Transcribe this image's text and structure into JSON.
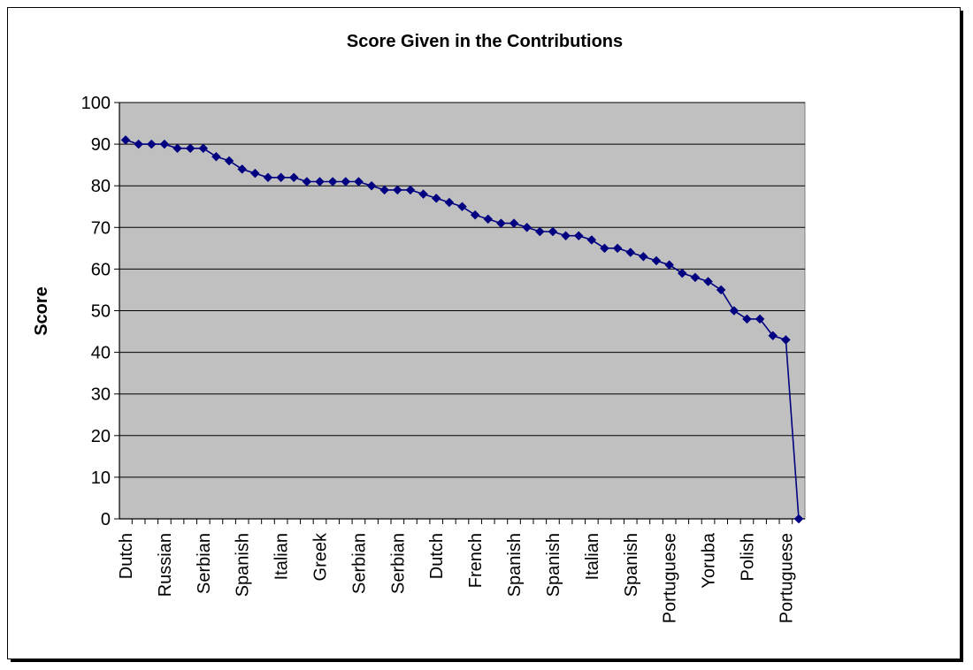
{
  "chart_data": {
    "type": "line",
    "title": "Score Given in the Contributions",
    "xlabel": "",
    "ylabel": "Score",
    "ylim": [
      0,
      100
    ],
    "yticks": [
      0,
      10,
      20,
      30,
      40,
      50,
      60,
      70,
      80,
      90,
      100
    ],
    "grid": true,
    "legend": "none",
    "colors": {
      "plot_bg": "#c0c0c0",
      "line": "#000080",
      "marker": "#000080",
      "grid": "#000000"
    },
    "x_labels": [
      "Dutch",
      "Russian",
      "Serbian",
      "Spanish",
      "Italian",
      "Greek",
      "Serbian",
      "Serbian",
      "Dutch",
      "French",
      "Spanish",
      "Spanish",
      "Italian",
      "Spanish",
      "Portuguese",
      "Yoruba",
      "Polish",
      "Portuguese"
    ],
    "x_label_every": 3,
    "values": [
      91,
      90,
      90,
      90,
      89,
      89,
      89,
      87,
      86,
      84,
      83,
      82,
      82,
      82,
      81,
      81,
      81,
      81,
      81,
      80,
      79,
      79,
      79,
      78,
      77,
      76,
      75,
      73,
      72,
      71,
      71,
      70,
      69,
      69,
      68,
      68,
      67,
      65,
      65,
      64,
      63,
      62,
      61,
      59,
      58,
      57,
      55,
      50,
      48,
      48,
      44,
      43,
      0
    ]
  }
}
